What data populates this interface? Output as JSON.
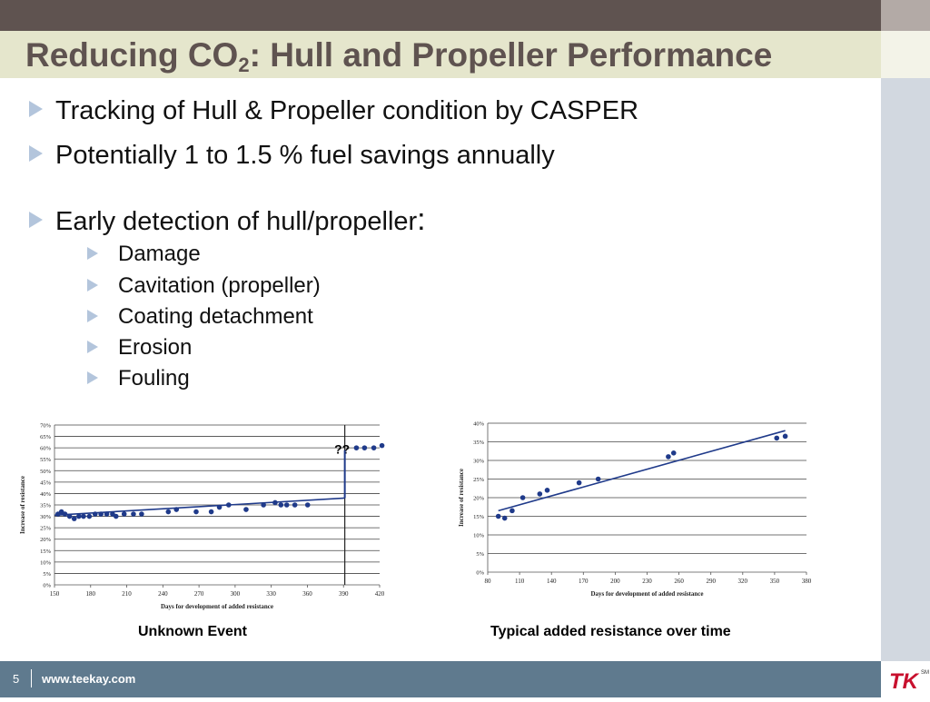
{
  "slide": {
    "title_main": "Reducing CO",
    "title_sub": "2",
    "title_rest": ": Hull and Propeller Performance"
  },
  "bullets": [
    {
      "text": "Tracking of Hull & Propeller condition by CASPER"
    },
    {
      "text": "Potentially 1 to 1.5 % fuel savings annually"
    },
    {
      "text": "Early detection of hull/propeller",
      "suffix": ":"
    }
  ],
  "sub_bullets": [
    {
      "text": "Damage"
    },
    {
      "text": "Cavitation (propeller)"
    },
    {
      "text": "Coating detachment"
    },
    {
      "text": "Erosion"
    },
    {
      "text": "Fouling"
    }
  ],
  "captions": {
    "left": "Unknown Event",
    "right": "Typical added resistance over time"
  },
  "footer": {
    "page_number": "5",
    "url": "www.teekay.com"
  },
  "logo": {
    "text": "TK",
    "sm": "SM"
  },
  "chart_data": [
    {
      "type": "scatter",
      "title": "Unknown Event",
      "xlabel": "Days for development of added resistance",
      "ylabel": "Increase of resistance",
      "xlim": [
        150,
        430
      ],
      "ylim": [
        0,
        70
      ],
      "x_ticks": [
        "150",
        "180",
        "210",
        "240",
        "270",
        "300",
        "330",
        "360",
        "390",
        "420"
      ],
      "y_ticks": [
        "0%",
        "5%",
        "10%",
        "15%",
        "20%",
        "25%",
        "30%",
        "35%",
        "40%",
        "45%",
        "50%",
        "55%",
        "60%",
        "65%",
        "70%"
      ],
      "annotation": "??",
      "event_x": 400,
      "grid": true,
      "points": [
        {
          "x": 153,
          "y": 31
        },
        {
          "x": 156,
          "y": 32
        },
        {
          "x": 159,
          "y": 31
        },
        {
          "x": 163,
          "y": 30
        },
        {
          "x": 167,
          "y": 29
        },
        {
          "x": 171,
          "y": 30
        },
        {
          "x": 175,
          "y": 30
        },
        {
          "x": 180,
          "y": 30
        },
        {
          "x": 185,
          "y": 31
        },
        {
          "x": 190,
          "y": 31
        },
        {
          "x": 195,
          "y": 31
        },
        {
          "x": 200,
          "y": 31
        },
        {
          "x": 203,
          "y": 30
        },
        {
          "x": 210,
          "y": 31
        },
        {
          "x": 218,
          "y": 31
        },
        {
          "x": 225,
          "y": 31
        },
        {
          "x": 248,
          "y": 32
        },
        {
          "x": 255,
          "y": 33
        },
        {
          "x": 272,
          "y": 32
        },
        {
          "x": 285,
          "y": 32
        },
        {
          "x": 292,
          "y": 34
        },
        {
          "x": 300,
          "y": 35
        },
        {
          "x": 315,
          "y": 33
        },
        {
          "x": 330,
          "y": 35
        },
        {
          "x": 340,
          "y": 36
        },
        {
          "x": 345,
          "y": 35
        },
        {
          "x": 350,
          "y": 35
        },
        {
          "x": 357,
          "y": 35
        },
        {
          "x": 368,
          "y": 35
        },
        {
          "x": 410,
          "y": 60
        },
        {
          "x": 417,
          "y": 60
        },
        {
          "x": 425,
          "y": 60
        },
        {
          "x": 432,
          "y": 61
        }
      ],
      "trend": [
        {
          "x": 150,
          "y": 30.5
        },
        {
          "x": 400,
          "y": 38
        }
      ]
    },
    {
      "type": "scatter",
      "title": "Typical added resistance over time",
      "xlabel": "Days for development of added resistance",
      "ylabel": "Increase of resistance",
      "xlim": [
        80,
        380
      ],
      "ylim": [
        0,
        40
      ],
      "x_ticks": [
        "80",
        "110",
        "140",
        "170",
        "200",
        "230",
        "260",
        "290",
        "320",
        "350",
        "380"
      ],
      "y_ticks": [
        "0%",
        "5%",
        "10%",
        "15%",
        "20%",
        "25%",
        "30%",
        "35%",
        "40%"
      ],
      "grid": true,
      "points": [
        {
          "x": 90,
          "y": 15
        },
        {
          "x": 96,
          "y": 14.5
        },
        {
          "x": 103,
          "y": 16.5
        },
        {
          "x": 113,
          "y": 20
        },
        {
          "x": 129,
          "y": 21
        },
        {
          "x": 136,
          "y": 22
        },
        {
          "x": 166,
          "y": 24
        },
        {
          "x": 184,
          "y": 25
        },
        {
          "x": 250,
          "y": 31
        },
        {
          "x": 255,
          "y": 32
        },
        {
          "x": 352,
          "y": 36
        },
        {
          "x": 360,
          "y": 36.5
        }
      ],
      "trend": [
        {
          "x": 90,
          "y": 16.5
        },
        {
          "x": 360,
          "y": 38
        }
      ]
    }
  ]
}
